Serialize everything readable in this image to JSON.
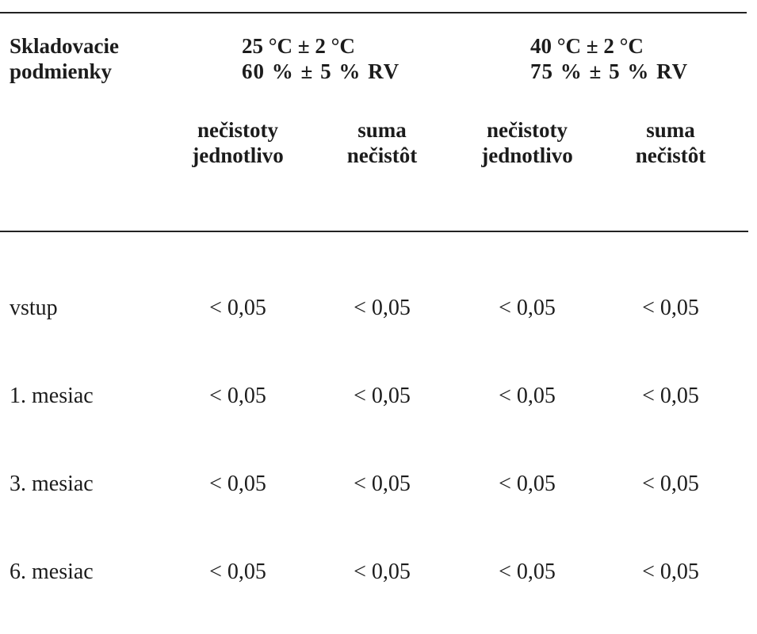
{
  "table": {
    "header": {
      "row_label": [
        "Skladovacie",
        "podmienky"
      ],
      "conditions": [
        {
          "line1": "25 °C ± 2 °C",
          "line2": "60 % ± 5 % RV"
        },
        {
          "line1": "40 °C ± 2 °C",
          "line2": "75 % ± 5 % RV"
        }
      ],
      "subheaders": [
        [
          "nečistoty",
          "jednotlivo"
        ],
        [
          "suma",
          "nečistôt"
        ],
        [
          "nečistoty",
          "jednotlivo"
        ],
        [
          "suma",
          "nečistôt"
        ]
      ]
    },
    "rows": [
      {
        "label": "vstup",
        "values": [
          "< 0,05",
          "< 0,05",
          "< 0,05",
          "< 0,05"
        ]
      },
      {
        "label": "1. mesiac",
        "values": [
          "< 0,05",
          "< 0,05",
          "< 0,05",
          "< 0,05"
        ]
      },
      {
        "label": "3. mesiac",
        "values": [
          "< 0,05",
          "< 0,05",
          "< 0,05",
          "< 0,05"
        ]
      },
      {
        "label": "6. mesiac",
        "values": [
          "< 0,05",
          "< 0,05",
          "< 0,05",
          "< 0,05"
        ]
      }
    ]
  }
}
